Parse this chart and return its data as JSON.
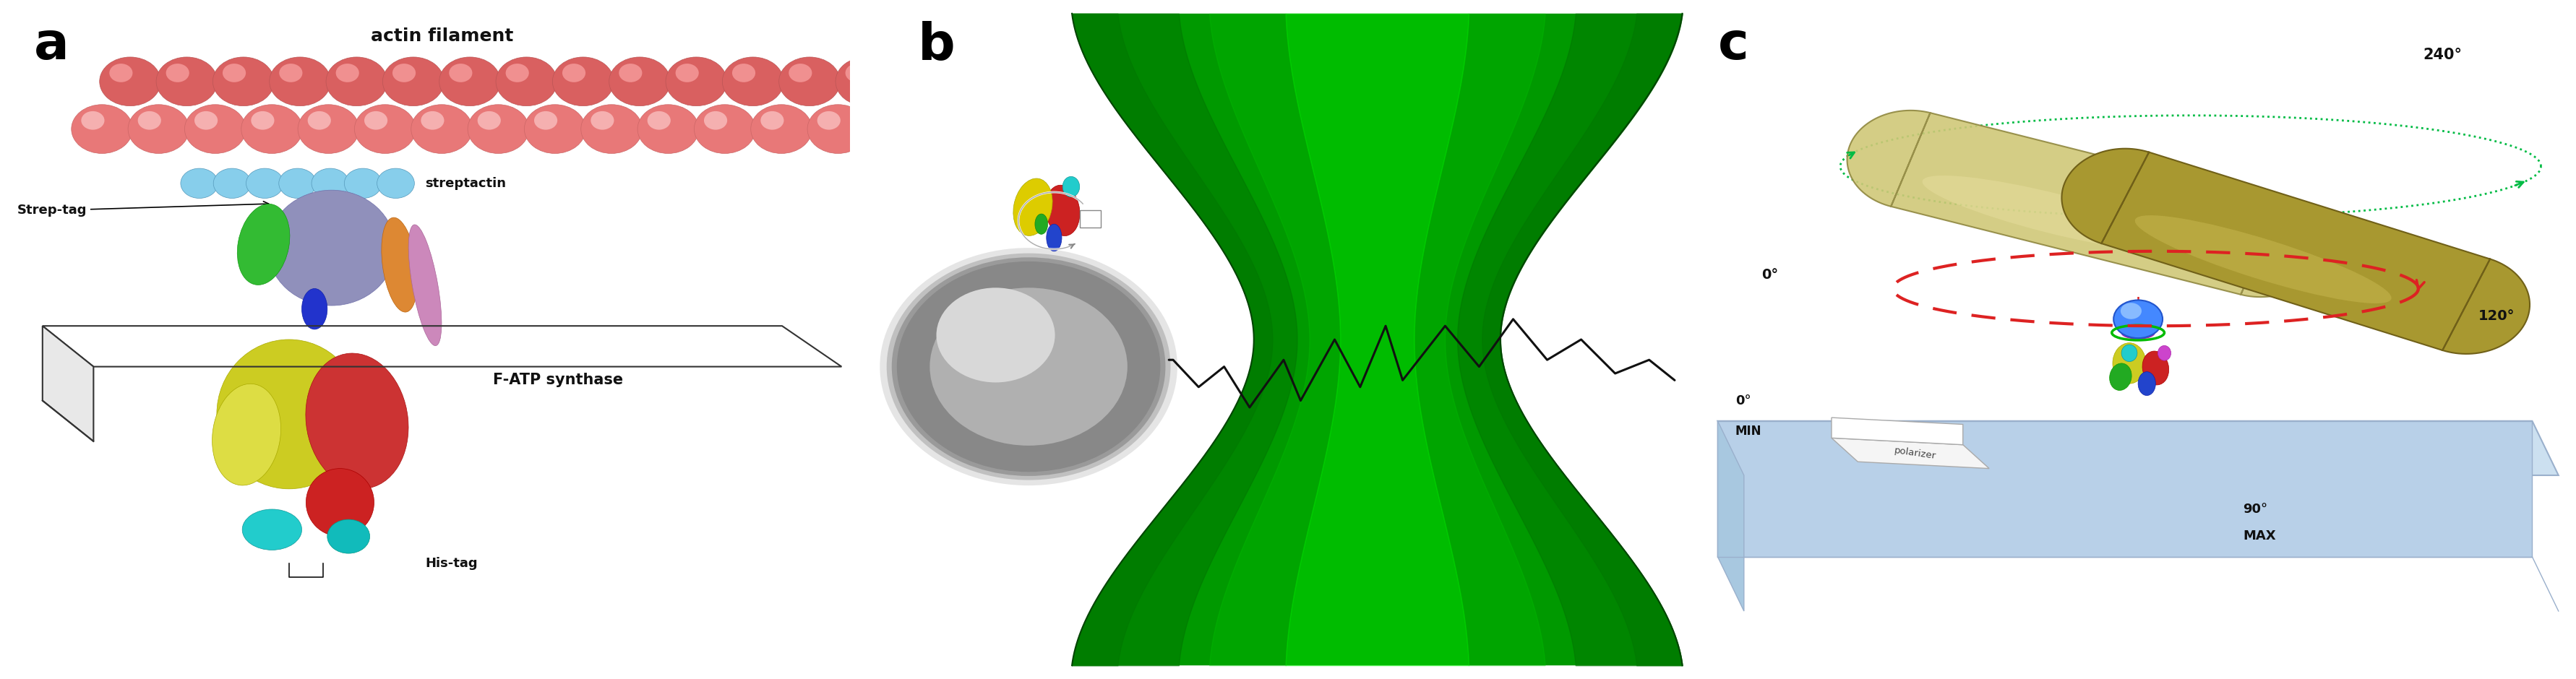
{
  "fig_width": 35.64,
  "fig_height": 9.4,
  "background_color": "#ffffff",
  "panel_a": {
    "label": "a",
    "label_fontsize": 52,
    "label_color": "#000000",
    "label_fontweight": "bold",
    "actin_label": "actin filament",
    "actin_label_fontsize": 18,
    "streptactin_label": "streptactin",
    "streptag_label": "Strep-tag",
    "fatp_label": "F-ATP synthase",
    "histag_label": "His-tag",
    "actin_color": "#e87878",
    "actin_color2": "#d96060",
    "streptactin_color": "#87ceeb"
  },
  "panel_b": {
    "label": "b",
    "label_fontsize": 52,
    "label_color": "#000000",
    "label_fontweight": "bold",
    "laser_color_dark": "#007700",
    "laser_color_mid": "#009900",
    "laser_color_bright": "#00cc00",
    "laser_color_highlight": "#00ff00"
  },
  "panel_c": {
    "label": "c",
    "label_fontsize": 52,
    "label_color": "#000000",
    "label_fontweight": "bold",
    "rod_color_light": "#d8cc80",
    "rod_color_mid": "#b8a848",
    "rod_color_dark": "#807030",
    "rod2_color_light": "#c0b860",
    "rod2_color_mid": "#989030",
    "platform_color": "#cce0f0",
    "platform_color2": "#b8d0e8",
    "arrow_green": "#00bb44",
    "arrow_red": "#dd2222",
    "deg240": "240°",
    "deg120": "120°",
    "deg0_top": "0°",
    "deg0_bottom": "0°",
    "deg90": "90°",
    "min_label": "MIN",
    "max_label": "MAX",
    "polarizer_label": "polarizer"
  }
}
